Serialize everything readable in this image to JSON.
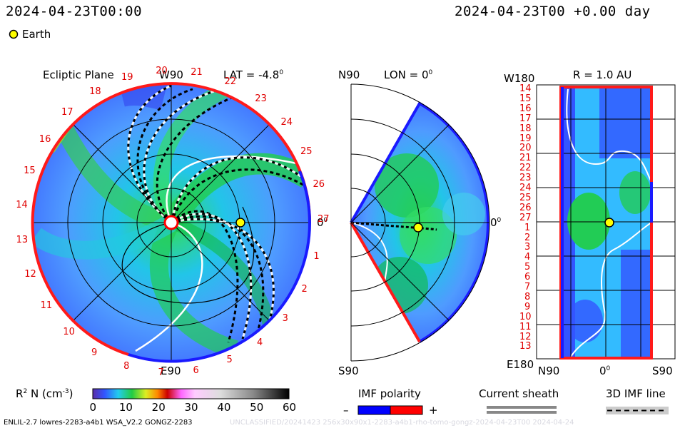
{
  "header": {
    "timestamp_left": "2024-04-23T00:00",
    "timestamp_right": "2024-04-23T00 +0.00 day"
  },
  "legend": {
    "earth_label": "Earth",
    "earth_color": "#ffff00"
  },
  "ecliptic": {
    "title": "Ecliptic Plane",
    "w90": "W90",
    "lat_label": "LAT = -4.8",
    "lat_degree": "0",
    "e90": "E90",
    "zero": "0",
    "zero_degree": "0",
    "carrington_numbers": [
      "1",
      "2",
      "3",
      "4",
      "5",
      "6",
      "7",
      "8",
      "9",
      "10",
      "11",
      "12",
      "13",
      "14",
      "15",
      "16",
      "17",
      "18",
      "19",
      "20",
      "21",
      "22",
      "23",
      "24",
      "25",
      "26",
      "27"
    ]
  },
  "meridional": {
    "n90": "N90",
    "lon_label": "LON = 0",
    "lon_degree": "0",
    "s90": "S90",
    "zero": "0",
    "zero_degree": "0"
  },
  "synoptic": {
    "w180": "W180",
    "r_label": "R = 1.0 AU",
    "e180": "E180",
    "bottom_n90": "N90",
    "bottom_zero": "0",
    "bottom_zero_degree": "0",
    "bottom_s90": "S90",
    "row_labels": [
      "14",
      "15",
      "16",
      "17",
      "18",
      "19",
      "20",
      "21",
      "22",
      "23",
      "24",
      "25",
      "26",
      "27",
      "1",
      "2",
      "3",
      "4",
      "5",
      "6",
      "7",
      "8",
      "9",
      "10",
      "11",
      "12",
      "13"
    ]
  },
  "colorbar": {
    "label_main": "R",
    "label_sup": "2",
    "label_n": "N (cm",
    "label_exp": "-3",
    "label_close": ")",
    "ticks": [
      "0",
      "10",
      "20",
      "30",
      "40",
      "50",
      "60"
    ]
  },
  "imf_polarity": {
    "title": "IMF polarity",
    "minus": "–",
    "plus": "+",
    "neg_color": "#0000ff",
    "pos_color": "#ff0000"
  },
  "current_sheath": {
    "title": "Current sheath"
  },
  "imf_line": {
    "title": "3D IMF line"
  },
  "footer": {
    "left": "ENLIL-2.7 lowres-2283-a4b1 WSA_V2.2 GONGZ-2283",
    "ghost": "UNCLASSIFIED/20241423 256x30x90x1-2283-a4b1-rho-tomo-gongz-2024-04-23T00   2024-04-24"
  }
}
